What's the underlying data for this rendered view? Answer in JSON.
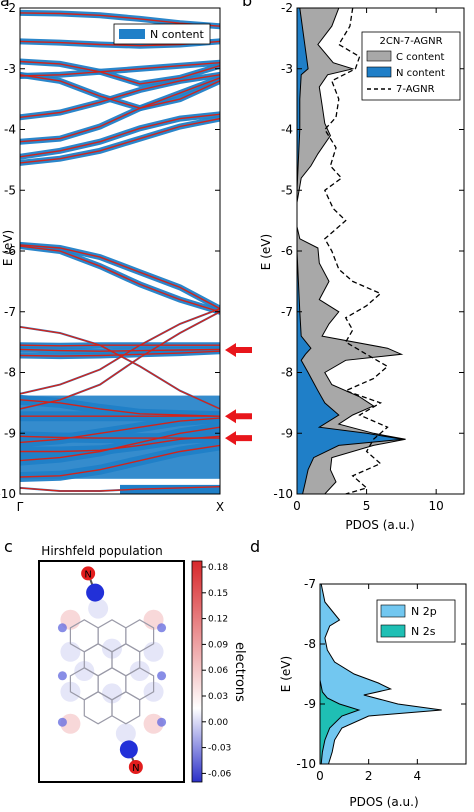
{
  "panel_labels": {
    "a": "a",
    "b": "b",
    "c": "c",
    "d": "d"
  },
  "colors": {
    "band": "#d0241c",
    "n_content": "#1f7fc8",
    "c_content": "#a8a8a8",
    "n2p": "#72c7f0",
    "n2s": "#1fbfb4",
    "arrow": "#e8161b",
    "cb_pos": "#d7282b",
    "cb_neg": "#2b30c8",
    "nitrogen": "#e21d1d",
    "carbon_n": "#2230d8"
  },
  "chart_data": [
    {
      "id": "a",
      "type": "line",
      "description_title": "",
      "ylabel": "E (eV)",
      "xlabel": "",
      "x_tick_labels": [
        "Γ",
        "X"
      ],
      "ylim": [
        -10,
        -2
      ],
      "yticks": [
        -2,
        -3,
        -4,
        -5,
        -6,
        -7,
        -8,
        -9,
        -10
      ],
      "legend": [
        "N content"
      ],
      "legend_position": "top-right",
      "annotations": [
        {
          "type": "arrow",
          "energy": -7.63
        },
        {
          "type": "arrow",
          "energy": -8.72
        },
        {
          "type": "arrow",
          "energy": -9.08
        }
      ],
      "series": [
        {
          "values": [
            -2.08,
            -2.09,
            -2.12,
            -2.18,
            -2.25,
            -2.3
          ]
        },
        {
          "values": [
            -2.55,
            -2.57,
            -2.6,
            -2.62,
            -2.6,
            -2.55
          ]
        },
        {
          "values": [
            -2.88,
            -2.92,
            -3.05,
            -3.25,
            -3.15,
            -2.95
          ]
        },
        {
          "values": [
            -3.1,
            -3.2,
            -3.45,
            -3.65,
            -3.5,
            -3.2
          ]
        },
        {
          "values": [
            -3.12,
            -3.1,
            -3.05,
            -3.0,
            -2.95,
            -2.9
          ]
        },
        {
          "values": [
            -3.8,
            -3.72,
            -3.55,
            -3.35,
            -3.2,
            -3.1
          ]
        },
        {
          "values": [
            -4.45,
            -4.35,
            -4.2,
            -3.98,
            -3.82,
            -3.75
          ]
        },
        {
          "values": [
            -4.55,
            -4.48,
            -4.35,
            -4.15,
            -3.95,
            -3.82
          ]
        },
        {
          "values": [
            -4.2,
            -4.15,
            -3.95,
            -3.65,
            -3.4,
            -3.15
          ]
        },
        {
          "values": [
            -5.9,
            -5.95,
            -6.1,
            -6.35,
            -6.6,
            -6.95
          ]
        },
        {
          "values": [
            -5.92,
            -6.0,
            -6.25,
            -6.55,
            -6.8,
            -7.0
          ]
        },
        {
          "values": [
            -7.25,
            -7.35,
            -7.55,
            -7.9,
            -8.3,
            -8.6
          ]
        },
        {
          "values": [
            -7.55,
            -7.56,
            -7.55,
            -7.55,
            -7.55,
            -7.55
          ]
        },
        {
          "values": [
            -7.62,
            -7.64,
            -7.65,
            -7.64,
            -7.63,
            -7.62
          ]
        },
        {
          "values": [
            -7.72,
            -7.73,
            -7.72,
            -7.7,
            -7.68,
            -7.65
          ]
        },
        {
          "values": [
            -8.35,
            -8.2,
            -7.95,
            -7.55,
            -7.2,
            -6.95
          ]
        },
        {
          "values": [
            -8.6,
            -8.45,
            -8.2,
            -7.75,
            -7.35,
            -7.0
          ]
        },
        {
          "values": [
            -8.45,
            -8.5,
            -8.6,
            -8.68,
            -8.7,
            -8.72
          ]
        },
        {
          "values": [
            -8.72,
            -8.72,
            -8.72,
            -8.72,
            -8.72,
            -8.72
          ]
        },
        {
          "values": [
            -9.05,
            -9.07,
            -9.08,
            -9.08,
            -9.08,
            -9.08
          ]
        },
        {
          "values": [
            -9.15,
            -9.1,
            -9.0,
            -8.9,
            -8.8,
            -8.75
          ]
        },
        {
          "values": [
            -9.3,
            -9.3,
            -9.28,
            -9.2,
            -9.1,
            -9.05
          ]
        },
        {
          "values": [
            -9.45,
            -9.4,
            -9.3,
            -9.15,
            -9.0,
            -8.9
          ]
        },
        {
          "values": [
            -9.72,
            -9.7,
            -9.6,
            -9.45,
            -9.3,
            -9.2
          ]
        },
        {
          "values": [
            -9.9,
            -9.95,
            -9.95,
            -9.92,
            -9.9,
            -9.88
          ]
        }
      ]
    },
    {
      "id": "b",
      "type": "area",
      "title": "",
      "xlabel": "PDOS (a.u.)",
      "ylabel": "E (eV)",
      "xlim": [
        0,
        12
      ],
      "ylim": [
        -10,
        -2
      ],
      "xticks": [
        0,
        5,
        10
      ],
      "yticks": [
        -2,
        -3,
        -4,
        -5,
        -6,
        -7,
        -8,
        -9,
        -10
      ],
      "legend_title": "2CN-7-AGNR",
      "legend_position": "top-right",
      "series": [
        {
          "name": "C content",
          "y": [
            -2.0,
            -2.3,
            -2.6,
            -2.9,
            -3.0,
            -3.1,
            -3.3,
            -3.6,
            -3.9,
            -4.1,
            -4.4,
            -4.6,
            -4.8,
            -5.2,
            -5.6,
            -5.8,
            -5.95,
            -6.2,
            -6.5,
            -6.8,
            -7.0,
            -7.2,
            -7.4,
            -7.6,
            -7.7,
            -7.8,
            -8.0,
            -8.2,
            -8.4,
            -8.55,
            -8.7,
            -8.85,
            -9.0,
            -9.1,
            -9.2,
            -9.4,
            -9.6,
            -9.8,
            -10.0
          ],
          "x": [
            3.0,
            2.5,
            1.5,
            2.6,
            4.0,
            2.2,
            1.6,
            1.8,
            2.0,
            2.4,
            1.5,
            1.0,
            0.3,
            0.0,
            0.0,
            0.2,
            1.5,
            1.6,
            2.3,
            1.6,
            3.0,
            2.3,
            1.8,
            6.5,
            7.5,
            3.5,
            2.0,
            2.5,
            4.5,
            5.5,
            4.0,
            3.0,
            5.5,
            7.8,
            5.5,
            2.5,
            2.4,
            2.8,
            2.0
          ]
        },
        {
          "name": "N content",
          "y": [
            -2.0,
            -3.0,
            -3.1,
            -3.5,
            -4.0,
            -5.0,
            -6.0,
            -6.5,
            -7.0,
            -7.4,
            -7.6,
            -7.7,
            -7.8,
            -8.0,
            -8.3,
            -8.5,
            -8.7,
            -8.9,
            -9.0,
            -9.1,
            -9.2,
            -9.4,
            -9.6,
            -9.8,
            -10.0
          ],
          "x": [
            0.2,
            0.8,
            0.3,
            0.2,
            0.2,
            0.0,
            0.0,
            0.1,
            0.2,
            0.3,
            1.0,
            0.6,
            0.3,
            0.8,
            1.5,
            2.0,
            3.0,
            1.6,
            5.0,
            7.6,
            3.0,
            1.2,
            0.8,
            0.6,
            0.4
          ]
        },
        {
          "name": "7-AGNR",
          "y": [
            -2.0,
            -2.3,
            -2.6,
            -2.8,
            -3.0,
            -3.2,
            -3.5,
            -3.8,
            -4.0,
            -4.3,
            -4.6,
            -4.8,
            -5.0,
            -5.3,
            -5.5,
            -5.8,
            -6.0,
            -6.3,
            -6.5,
            -6.7,
            -6.9,
            -7.1,
            -7.3,
            -7.5,
            -7.7,
            -7.9,
            -8.1,
            -8.3,
            -8.5,
            -8.7,
            -8.9,
            -9.1,
            -9.3,
            -9.5,
            -9.7,
            -9.9,
            -10.0
          ],
          "x": [
            4.0,
            3.8,
            3.0,
            4.5,
            4.2,
            2.5,
            3.0,
            2.8,
            2.0,
            2.8,
            2.4,
            3.2,
            2.0,
            2.6,
            3.5,
            2.0,
            2.5,
            3.0,
            4.0,
            6.0,
            5.0,
            3.5,
            4.0,
            3.5,
            5.0,
            6.5,
            5.5,
            3.5,
            6.0,
            4.5,
            6.5,
            5.5,
            5.0,
            6.0,
            4.0,
            5.0,
            3.5
          ]
        }
      ]
    },
    {
      "id": "c",
      "type": "heatmap",
      "title": "Hirshfeld population",
      "colorbar_label": "electrons",
      "colorbar_ticks": [
        "0.18",
        "0.15",
        "0.12",
        "0.09",
        "0.06",
        "0.03",
        "0.00",
        "-0.03",
        "-0.06"
      ],
      "atom_labels": [
        "N",
        "C",
        "C",
        "N"
      ]
    },
    {
      "id": "d",
      "type": "area",
      "title": "",
      "xlabel": "PDOS (a.u.)",
      "ylabel": "E (eV)",
      "xlim": [
        0,
        6
      ],
      "ylim": [
        -10,
        -7
      ],
      "xticks": [
        0,
        2,
        4
      ],
      "yticks": [
        -7,
        -8,
        -9,
        -10
      ],
      "legend_position": "top-right",
      "series": [
        {
          "name": "N 2p",
          "y": [
            -7.0,
            -7.3,
            -7.5,
            -7.6,
            -7.7,
            -7.9,
            -8.1,
            -8.3,
            -8.5,
            -8.65,
            -8.75,
            -8.85,
            -9.0,
            -9.1,
            -9.2,
            -9.4,
            -9.6,
            -9.8,
            -10.0
          ],
          "x": [
            0.05,
            0.2,
            0.6,
            0.8,
            0.4,
            0.2,
            0.3,
            0.6,
            1.4,
            2.4,
            2.9,
            1.8,
            3.2,
            5.0,
            2.0,
            0.9,
            0.6,
            0.5,
            0.35
          ]
        },
        {
          "name": "N 2s",
          "y": [
            -8.6,
            -8.8,
            -8.9,
            -9.0,
            -9.05,
            -9.1,
            -9.2,
            -9.4,
            -9.6,
            -9.8,
            -10.0
          ],
          "x": [
            0.0,
            0.1,
            0.3,
            0.8,
            1.2,
            1.6,
            0.9,
            0.4,
            0.2,
            0.1,
            0.05
          ]
        }
      ]
    }
  ]
}
